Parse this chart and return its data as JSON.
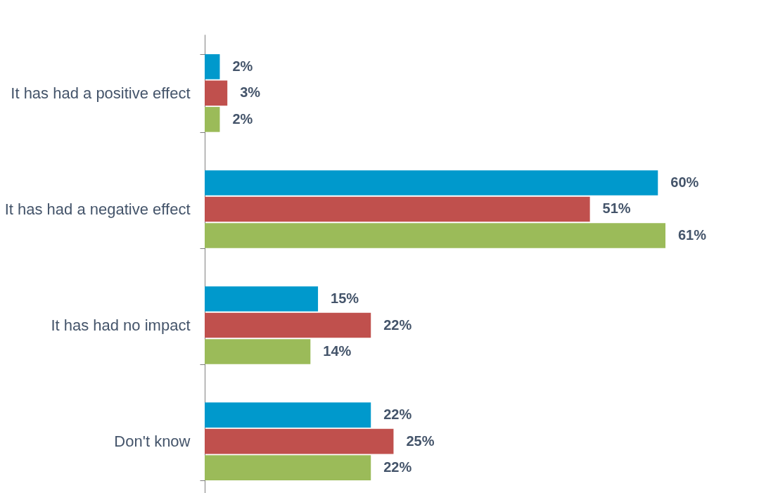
{
  "chart_data": {
    "type": "bar",
    "orientation": "horizontal",
    "categories": [
      "It has had a positive effect",
      "It has had a negative effect",
      "It has had no impact",
      "Don't know"
    ],
    "series": [
      {
        "color": "#0099cc",
        "values": [
          2,
          60,
          15,
          22
        ],
        "value_labels": [
          "2%",
          "60%",
          "15%",
          "22%"
        ]
      },
      {
        "color": "#c0504d",
        "values": [
          3,
          51,
          22,
          25
        ],
        "value_labels": [
          "3%",
          "51%",
          "22%",
          "25%"
        ]
      },
      {
        "color": "#9bbb59",
        "values": [
          2,
          61,
          14,
          22
        ],
        "value_labels": [
          "2%",
          "61%",
          "14%",
          "22%"
        ]
      }
    ]
  }
}
